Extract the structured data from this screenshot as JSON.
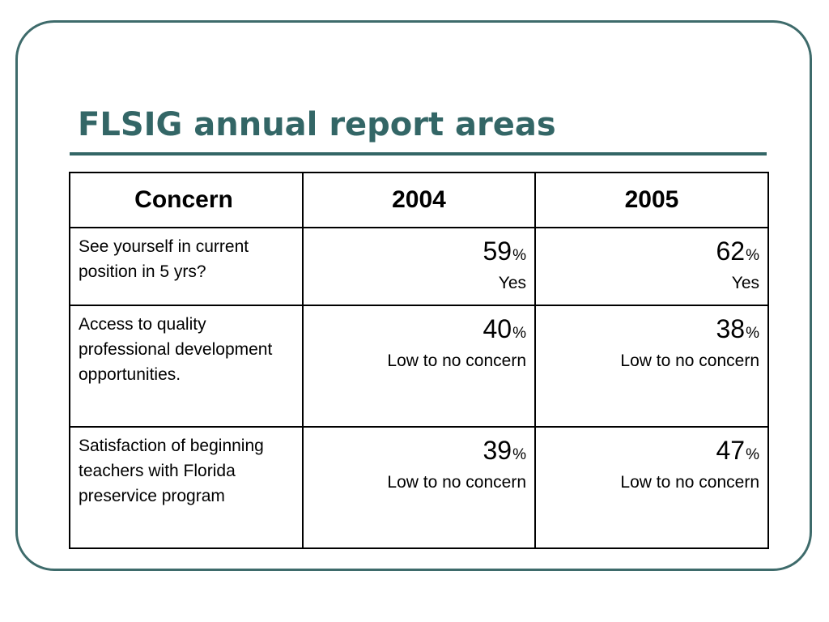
{
  "slide": {
    "title": "FLSIG annual report areas",
    "accent_color": "#336666"
  },
  "table": {
    "headers": [
      "Concern",
      "2004",
      "2005"
    ],
    "rows": [
      {
        "concern": "See yourself in current position in 5 yrs?",
        "v2004": {
          "value": "59",
          "unit": "%",
          "note": "Yes"
        },
        "v2005": {
          "value": "62",
          "unit": "%",
          "note": "Yes"
        }
      },
      {
        "concern": "Access to quality professional development opportunities.",
        "v2004": {
          "value": "40",
          "unit": "%",
          "note": "Low to no concern"
        },
        "v2005": {
          "value": "38",
          "unit": "%",
          "note": "Low to no concern"
        }
      },
      {
        "concern": "Satisfaction of beginning teachers with Florida preservice program",
        "v2004": {
          "value": "39",
          "unit": "%",
          "note": "Low to no concern"
        },
        "v2005": {
          "value": "47",
          "unit": "%",
          "note": "Low to no concern"
        }
      }
    ]
  }
}
